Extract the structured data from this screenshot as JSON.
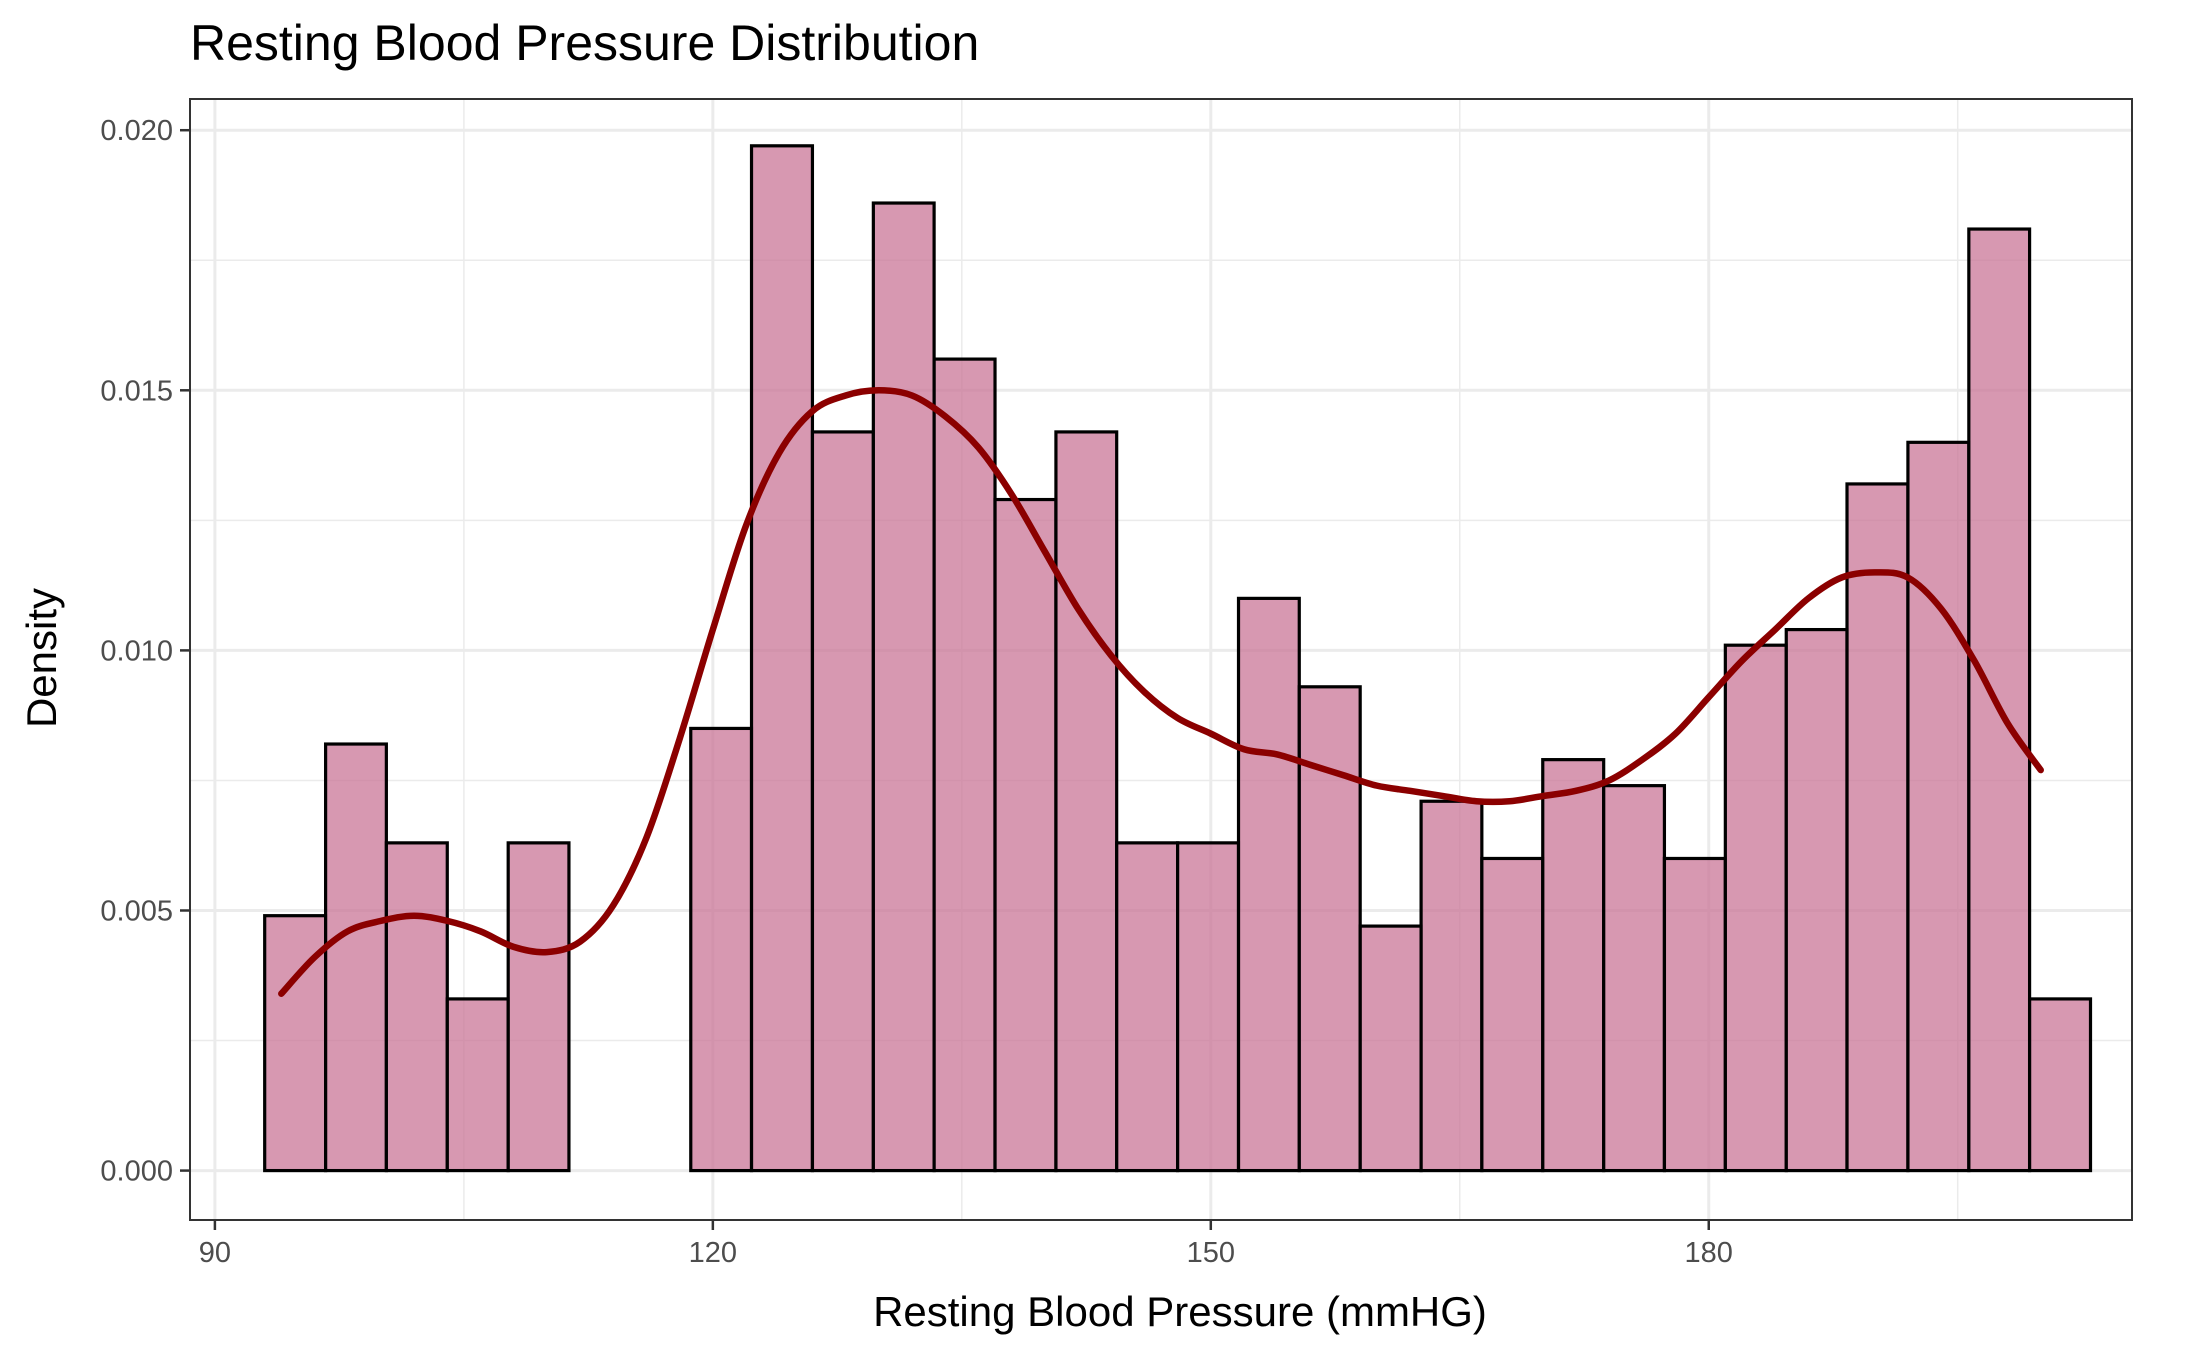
{
  "chart_data": {
    "type": "histogram",
    "title": "Resting Blood Pressure Distribution",
    "xlabel": "Resting Blood Pressure (mmHG)",
    "ylabel": "Density",
    "xlim": [
      88.5,
      205.5
    ],
    "ylim": [
      -0.00095,
      0.0206
    ],
    "x_ticks": [
      {
        "value": 90,
        "label": "90"
      },
      {
        "value": 120,
        "label": "120"
      },
      {
        "value": 150,
        "label": "150"
      },
      {
        "value": 180,
        "label": "180"
      }
    ],
    "y_ticks": [
      {
        "value": 0.0,
        "label": "0.000"
      },
      {
        "value": 0.005,
        "label": "0.005"
      },
      {
        "value": 0.01,
        "label": "0.010"
      },
      {
        "value": 0.015,
        "label": "0.015"
      },
      {
        "value": 0.02,
        "label": "0.020"
      }
    ],
    "x_minor": [
      105,
      135,
      165,
      195
    ],
    "y_minor": [
      0.0025,
      0.0075,
      0.0125,
      0.0175
    ],
    "grid": true,
    "bin_width": 3.667,
    "bins": [
      {
        "x0": 93.0,
        "x1": 96.67,
        "density": 0.0049
      },
      {
        "x0": 96.67,
        "x1": 100.33,
        "density": 0.0082
      },
      {
        "x0": 100.33,
        "x1": 104.0,
        "density": 0.0063
      },
      {
        "x0": 104.0,
        "x1": 107.67,
        "density": 0.0033
      },
      {
        "x0": 107.67,
        "x1": 111.33,
        "density": 0.0063
      },
      {
        "x0": 111.33,
        "x1": 115.0,
        "density": 0.0
      },
      {
        "x0": 115.0,
        "x1": 118.67,
        "density": 0.0
      },
      {
        "x0": 118.67,
        "x1": 122.33,
        "density": 0.0085
      },
      {
        "x0": 122.33,
        "x1": 126.0,
        "density": 0.0197
      },
      {
        "x0": 126.0,
        "x1": 129.67,
        "density": 0.0142
      },
      {
        "x0": 129.67,
        "x1": 133.33,
        "density": 0.0186
      },
      {
        "x0": 133.33,
        "x1": 137.0,
        "density": 0.0156
      },
      {
        "x0": 137.0,
        "x1": 140.67,
        "density": 0.0129
      },
      {
        "x0": 140.67,
        "x1": 144.33,
        "density": 0.0142
      },
      {
        "x0": 144.33,
        "x1": 148.0,
        "density": 0.0063
      },
      {
        "x0": 148.0,
        "x1": 151.67,
        "density": 0.0063
      },
      {
        "x0": 151.67,
        "x1": 155.33,
        "density": 0.011
      },
      {
        "x0": 155.33,
        "x1": 159.0,
        "density": 0.0093
      },
      {
        "x0": 159.0,
        "x1": 162.67,
        "density": 0.0047
      },
      {
        "x0": 162.67,
        "x1": 166.33,
        "density": 0.0071
      },
      {
        "x0": 166.33,
        "x1": 170.0,
        "density": 0.006
      },
      {
        "x0": 170.0,
        "x1": 173.67,
        "density": 0.0079
      },
      {
        "x0": 173.67,
        "x1": 177.33,
        "density": 0.0074
      },
      {
        "x0": 177.33,
        "x1": 181.0,
        "density": 0.006
      },
      {
        "x0": 181.0,
        "x1": 184.67,
        "density": 0.0101
      },
      {
        "x0": 184.67,
        "x1": 188.33,
        "density": 0.0104
      },
      {
        "x0": 188.33,
        "x1": 192.0,
        "density": 0.0132
      },
      {
        "x0": 192.0,
        "x1": 195.67,
        "density": 0.014
      },
      {
        "x0": 195.67,
        "x1": 199.33,
        "density": 0.0181
      },
      {
        "x0": 199.33,
        "x1": 203.0,
        "density": 0.0033
      }
    ],
    "density_curve": {
      "x": [
        94,
        96,
        98,
        100,
        102,
        104,
        106,
        108,
        110,
        112,
        114,
        116,
        118,
        120,
        122,
        124,
        126,
        128,
        130,
        132,
        134,
        136,
        138,
        140,
        142,
        144,
        146,
        148,
        150,
        152,
        154,
        156,
        158,
        160,
        162,
        164,
        166,
        168,
        170,
        172,
        174,
        176,
        178,
        180,
        182,
        184,
        186,
        188,
        190,
        192,
        194,
        196,
        198,
        200
      ],
      "y": [
        0.0034,
        0.0041,
        0.0046,
        0.0048,
        0.0049,
        0.0048,
        0.0046,
        0.0043,
        0.0042,
        0.0044,
        0.0051,
        0.0064,
        0.0083,
        0.0104,
        0.0124,
        0.0138,
        0.0146,
        0.0149,
        0.015,
        0.0149,
        0.0145,
        0.0139,
        0.013,
        0.0119,
        0.0108,
        0.0099,
        0.0092,
        0.0087,
        0.0084,
        0.0081,
        0.008,
        0.0078,
        0.0076,
        0.0074,
        0.0073,
        0.0072,
        0.0071,
        0.0071,
        0.0072,
        0.0073,
        0.0075,
        0.0079,
        0.0084,
        0.0091,
        0.0098,
        0.0104,
        0.011,
        0.0114,
        0.0115,
        0.0114,
        0.0108,
        0.0098,
        0.0086,
        0.0077
      ],
      "color": "#8b0000"
    },
    "bar_fill": "#c97597",
    "bar_outline": "#000000"
  }
}
